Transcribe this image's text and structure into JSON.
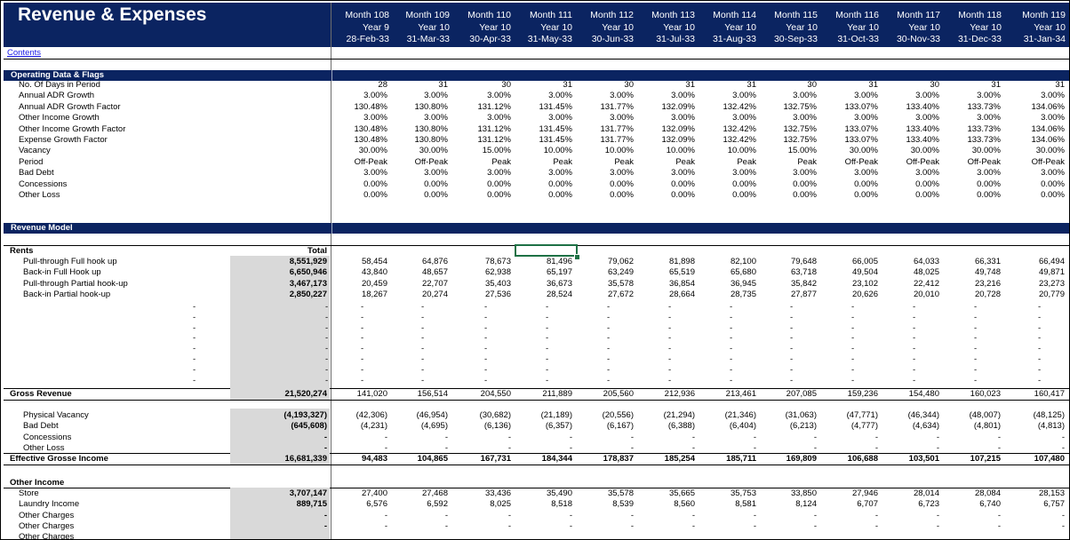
{
  "sheet": {
    "title": "Revenue & Expenses",
    "contents_link": "Contents",
    "columns": [
      {
        "month": "Month 108",
        "year": "Year 9",
        "date": "28-Feb-33"
      },
      {
        "month": "Month 109",
        "year": "Year 10",
        "date": "31-Mar-33"
      },
      {
        "month": "Month 110",
        "year": "Year 10",
        "date": "30-Apr-33"
      },
      {
        "month": "Month 111",
        "year": "Year 10",
        "date": "31-May-33"
      },
      {
        "month": "Month 112",
        "year": "Year 10",
        "date": "30-Jun-33"
      },
      {
        "month": "Month 113",
        "year": "Year 10",
        "date": "31-Jul-33"
      },
      {
        "month": "Month 114",
        "year": "Year 10",
        "date": "31-Aug-33"
      },
      {
        "month": "Month 115",
        "year": "Year 10",
        "date": "30-Sep-33"
      },
      {
        "month": "Month 116",
        "year": "Year 10",
        "date": "31-Oct-33"
      },
      {
        "month": "Month 117",
        "year": "Year 10",
        "date": "30-Nov-33"
      },
      {
        "month": "Month 118",
        "year": "Year 10",
        "date": "31-Dec-33"
      },
      {
        "month": "Month 119",
        "year": "Year 10",
        "date": "31-Jan-34"
      }
    ],
    "operating": {
      "header": "Operating Data & Flags",
      "rows": [
        {
          "label": "No. Of Days in Period",
          "values": [
            "28",
            "31",
            "30",
            "31",
            "30",
            "31",
            "31",
            "30",
            "31",
            "30",
            "31",
            "31"
          ]
        },
        {
          "label": "Annual ADR Growth",
          "values": [
            "3.00%",
            "3.00%",
            "3.00%",
            "3.00%",
            "3.00%",
            "3.00%",
            "3.00%",
            "3.00%",
            "3.00%",
            "3.00%",
            "3.00%",
            "3.00%"
          ]
        },
        {
          "label": "Annual ADR Growth Factor",
          "values": [
            "130.48%",
            "130.80%",
            "131.12%",
            "131.45%",
            "131.77%",
            "132.09%",
            "132.42%",
            "132.75%",
            "133.07%",
            "133.40%",
            "133.73%",
            "134.06%"
          ]
        },
        {
          "label": "Other Income Growth",
          "values": [
            "3.00%",
            "3.00%",
            "3.00%",
            "3.00%",
            "3.00%",
            "3.00%",
            "3.00%",
            "3.00%",
            "3.00%",
            "3.00%",
            "3.00%",
            "3.00%"
          ]
        },
        {
          "label": "Other Income Growth Factor",
          "values": [
            "130.48%",
            "130.80%",
            "131.12%",
            "131.45%",
            "131.77%",
            "132.09%",
            "132.42%",
            "132.75%",
            "133.07%",
            "133.40%",
            "133.73%",
            "134.06%"
          ]
        },
        {
          "label": "Expense Growth Factor",
          "values": [
            "130.48%",
            "130.80%",
            "131.12%",
            "131.45%",
            "131.77%",
            "132.09%",
            "132.42%",
            "132.75%",
            "133.07%",
            "133.40%",
            "133.73%",
            "134.06%"
          ]
        },
        {
          "label": "Vacancy",
          "values": [
            "30.00%",
            "30.00%",
            "15.00%",
            "10.00%",
            "10.00%",
            "10.00%",
            "10.00%",
            "15.00%",
            "30.00%",
            "30.00%",
            "30.00%",
            "30.00%"
          ]
        },
        {
          "label": "Period",
          "values": [
            "Off-Peak",
            "Off-Peak",
            "Peak",
            "Peak",
            "Peak",
            "Peak",
            "Peak",
            "Peak",
            "Off-Peak",
            "Off-Peak",
            "Off-Peak",
            "Off-Peak"
          ]
        },
        {
          "label": "Bad Debt",
          "values": [
            "3.00%",
            "3.00%",
            "3.00%",
            "3.00%",
            "3.00%",
            "3.00%",
            "3.00%",
            "3.00%",
            "3.00%",
            "3.00%",
            "3.00%",
            "3.00%"
          ]
        },
        {
          "label": "Concessions",
          "values": [
            "0.00%",
            "0.00%",
            "0.00%",
            "0.00%",
            "0.00%",
            "0.00%",
            "0.00%",
            "0.00%",
            "0.00%",
            "0.00%",
            "0.00%",
            "0.00%"
          ]
        },
        {
          "label": "Other Loss",
          "values": [
            "0.00%",
            "0.00%",
            "0.00%",
            "0.00%",
            "0.00%",
            "0.00%",
            "0.00%",
            "0.00%",
            "0.00%",
            "0.00%",
            "0.00%",
            "0.00%"
          ]
        }
      ]
    },
    "revenue": {
      "header": "Revenue Model",
      "rents_label": "Rents",
      "total_label": "Total",
      "rows": [
        {
          "label": "Pull-through Full hook up",
          "total": "8,551,929",
          "values": [
            "58,454",
            "64,876",
            "78,673",
            "81,496",
            "79,062",
            "81,898",
            "82,100",
            "79,648",
            "66,005",
            "64,033",
            "66,331",
            "66,494"
          ]
        },
        {
          "label": "Back-in Full Hook up",
          "total": "6,650,946",
          "values": [
            "43,840",
            "48,657",
            "62,938",
            "65,197",
            "63,249",
            "65,519",
            "65,680",
            "63,718",
            "49,504",
            "48,025",
            "49,748",
            "49,871"
          ]
        },
        {
          "label": "Pull-through Partial hook-up",
          "total": "3,467,173",
          "values": [
            "20,459",
            "22,707",
            "35,403",
            "36,673",
            "35,578",
            "36,854",
            "36,945",
            "35,842",
            "23,102",
            "22,412",
            "23,216",
            "23,273"
          ]
        },
        {
          "label": "Back-in Partial hook-up",
          "total": "2,850,227",
          "values": [
            "18,267",
            "20,274",
            "27,536",
            "28,524",
            "27,672",
            "28,664",
            "28,735",
            "27,877",
            "20,626",
            "20,010",
            "20,728",
            "20,779"
          ]
        }
      ],
      "dash": "-",
      "gross": {
        "label": "Gross Revenue",
        "total": "21,520,274",
        "values": [
          "141,020",
          "156,514",
          "204,550",
          "211,889",
          "205,560",
          "212,936",
          "213,461",
          "207,085",
          "159,236",
          "154,480",
          "160,023",
          "160,417"
        ]
      },
      "deductions": [
        {
          "label": "Physical Vacancy",
          "total": "(4,193,327)",
          "values": [
            "(42,306)",
            "(46,954)",
            "(30,682)",
            "(21,189)",
            "(20,556)",
            "(21,294)",
            "(21,346)",
            "(31,063)",
            "(47,771)",
            "(46,344)",
            "(48,007)",
            "(48,125)"
          ]
        },
        {
          "label": "Bad Debt",
          "total": "(645,608)",
          "values": [
            "(4,231)",
            "(4,695)",
            "(6,136)",
            "(6,357)",
            "(6,167)",
            "(6,388)",
            "(6,404)",
            "(6,213)",
            "(4,777)",
            "(4,634)",
            "(4,801)",
            "(4,813)"
          ]
        },
        {
          "label": "Concessions",
          "total": "-",
          "values": [
            "-",
            "-",
            "-",
            "-",
            "-",
            "-",
            "-",
            "-",
            "-",
            "-",
            "-",
            "-"
          ]
        },
        {
          "label": "Other Loss",
          "total": "-",
          "values": [
            "-",
            "-",
            "-",
            "-",
            "-",
            "-",
            "-",
            "-",
            "-",
            "-",
            "-",
            "-"
          ]
        }
      ],
      "egi": {
        "label": "Effective Grosse Income",
        "total": "16,681,339",
        "values": [
          "94,483",
          "104,865",
          "167,731",
          "184,344",
          "178,837",
          "185,254",
          "185,711",
          "169,809",
          "106,688",
          "103,501",
          "107,215",
          "107,480"
        ]
      }
    },
    "other_income": {
      "header": "Other Income",
      "rows": [
        {
          "label": "Store",
          "total": "3,707,147",
          "values": [
            "27,400",
            "27,468",
            "33,436",
            "35,490",
            "35,578",
            "35,665",
            "35,753",
            "33,850",
            "27,946",
            "28,014",
            "28,084",
            "28,153"
          ]
        },
        {
          "label": "Laundry Income",
          "total": "889,715",
          "values": [
            "6,576",
            "6,592",
            "8,025",
            "8,518",
            "8,539",
            "8,560",
            "8,581",
            "8,124",
            "6,707",
            "6,723",
            "6,740",
            "6,757"
          ]
        },
        {
          "label": "Other Charges",
          "total": "-",
          "values": [
            "-",
            "-",
            "-",
            "-",
            "-",
            "-",
            "-",
            "-",
            "-",
            "-",
            "-",
            "-"
          ]
        },
        {
          "label": "Other Charges",
          "total": "-",
          "values": [
            "-",
            "-",
            "-",
            "-",
            "-",
            "-",
            "-",
            "-",
            "-",
            "-",
            "-",
            "-"
          ]
        },
        {
          "label": "Other Charges",
          "total": "",
          "values": [
            "",
            "",
            "",
            "",
            "",
            "",
            "",
            "",
            "",
            "",
            "",
            ""
          ]
        }
      ]
    }
  }
}
